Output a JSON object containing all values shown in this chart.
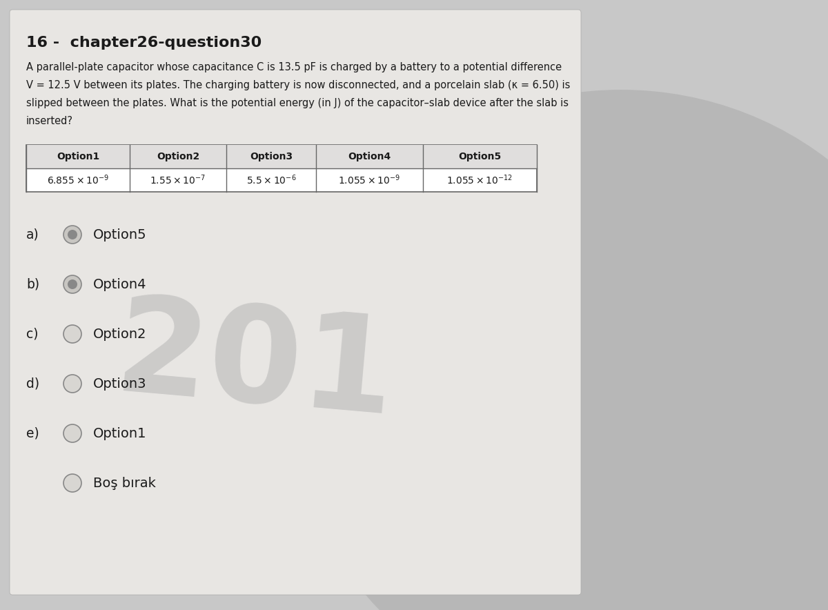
{
  "title": "16 -  chapter26-question30",
  "question_line1": "A parallel-plate capacitor whose capacitance C is 13.5 pF is charged by a battery to a potential difference",
  "question_line2": "V = 12.5 V between its plates. The charging battery is now disconnected, and a porcelain slab (κ = 6.50) is",
  "question_line3": "slipped between the plates. What is the potential energy (in J) of the capacitor–slab device after the slab is",
  "question_line4": "inserted?",
  "table_headers": [
    "Option1",
    "Option2",
    "Option3",
    "Option4",
    "Option5"
  ],
  "value_raw": [
    "6.855 \\times 10^{-9}",
    "1.55 \\times 10^{-7}",
    "5.5 \\times 10^{-6}",
    "1.055 \\times 10^{-9}",
    "1.055 \\times 10^{-12}"
  ],
  "choices": [
    {
      "label": "a)",
      "text": "Option5",
      "style": "small_filled"
    },
    {
      "label": "b)",
      "text": "Option4",
      "style": "small_filled"
    },
    {
      "label": "c)",
      "text": "Option2",
      "style": "open"
    },
    {
      "label": "d)",
      "text": "Option3",
      "style": "open"
    },
    {
      "label": "e)",
      "text": "Option1",
      "style": "open"
    },
    {
      "label": "",
      "text": "Boş bırak",
      "style": "open"
    }
  ],
  "bg_color": "#c8c8c8",
  "paper_color": "#e8e6e3",
  "text_color": "#1a1a1a",
  "watermark_text": "201",
  "circle_bg": "#b0afac",
  "circle_fg": "#d0cdc9"
}
